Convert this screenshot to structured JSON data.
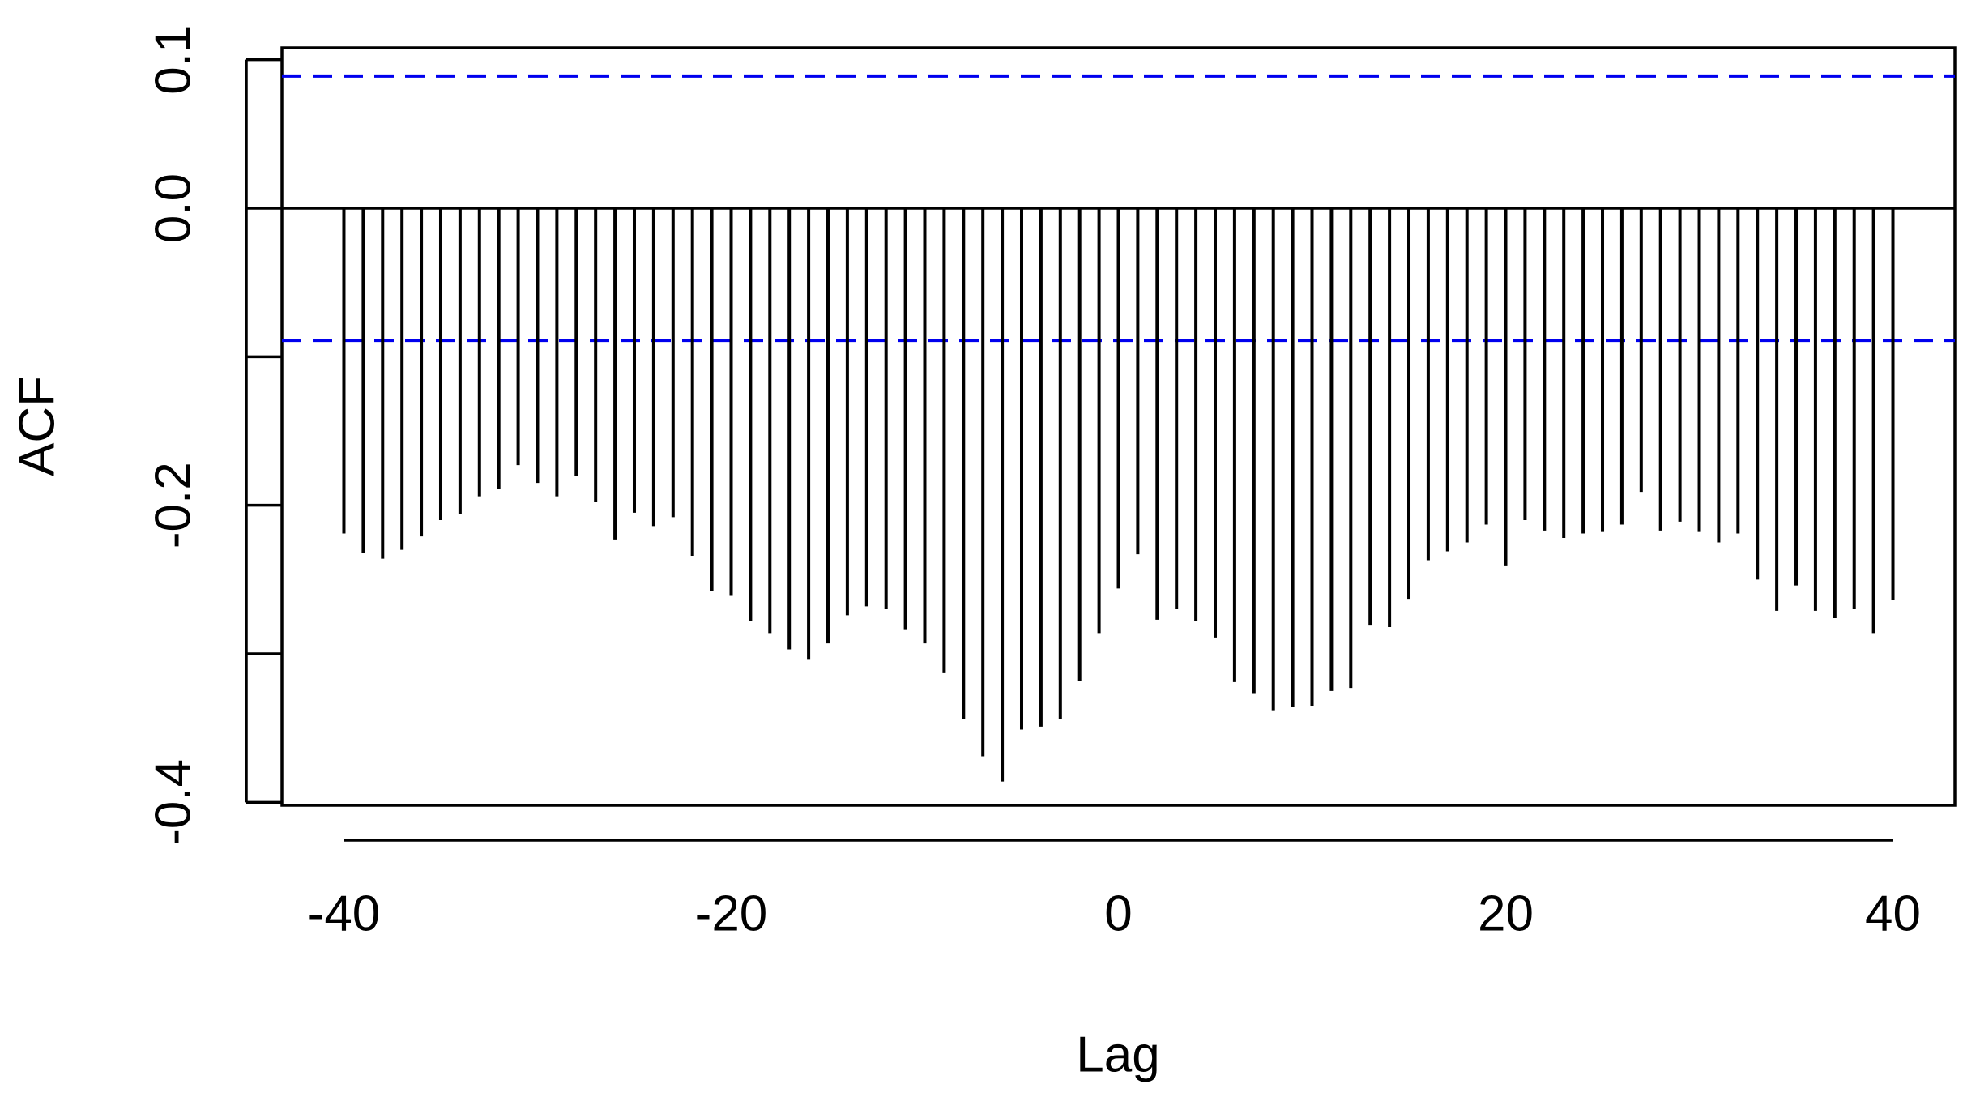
{
  "chart_data": {
    "type": "stem",
    "x_label": "Lag",
    "y_label": "ACF",
    "x": [
      -40,
      -39,
      -38,
      -37,
      -36,
      -35,
      -34,
      -33,
      -32,
      -31,
      -30,
      -29,
      -28,
      -27,
      -26,
      -25,
      -24,
      -23,
      -22,
      -21,
      -20,
      -19,
      -18,
      -17,
      -16,
      -15,
      -14,
      -13,
      -12,
      -11,
      -10,
      -9,
      -8,
      -7,
      -6,
      -5,
      -4,
      -3,
      -2,
      -1,
      0,
      1,
      2,
      3,
      4,
      5,
      6,
      7,
      8,
      9,
      10,
      11,
      12,
      13,
      14,
      15,
      16,
      17,
      18,
      19,
      20,
      21,
      22,
      23,
      24,
      25,
      26,
      27,
      28,
      29,
      30,
      31,
      32,
      33,
      34,
      35,
      36,
      37,
      38,
      39,
      40
    ],
    "values": [
      -0.219,
      -0.232,
      -0.236,
      -0.23,
      -0.221,
      -0.21,
      -0.206,
      -0.194,
      -0.189,
      -0.173,
      -0.185,
      -0.194,
      -0.18,
      -0.198,
      -0.223,
      -0.205,
      -0.214,
      -0.208,
      -0.234,
      -0.258,
      -0.261,
      -0.278,
      -0.286,
      -0.297,
      -0.304,
      -0.293,
      -0.274,
      -0.268,
      -0.27,
      -0.284,
      -0.293,
      -0.313,
      -0.344,
      -0.369,
      -0.386,
      -0.351,
      -0.349,
      -0.344,
      -0.318,
      -0.286,
      -0.256,
      -0.233,
      -0.277,
      -0.27,
      -0.278,
      -0.289,
      -0.319,
      -0.327,
      -0.338,
      -0.336,
      -0.335,
      -0.325,
      -0.323,
      -0.281,
      -0.282,
      -0.263,
      -0.237,
      -0.231,
      -0.225,
      -0.213,
      -0.241,
      -0.21,
      -0.217,
      -0.222,
      -0.219,
      -0.218,
      -0.213,
      -0.191,
      -0.217,
      -0.211,
      -0.218,
      -0.225,
      -0.219,
      -0.25,
      -0.271,
      -0.254,
      -0.271,
      -0.276,
      -0.27,
      -0.286,
      -0.264
    ],
    "color": "#000000",
    "ci_lines": [
      0.089,
      -0.089
    ],
    "ci_color": "#0000ee",
    "xlim": [
      -43.2,
      43.2
    ],
    "xticks": [
      -40,
      -20,
      0,
      20,
      40
    ],
    "ylim": [
      -0.402,
      0.108
    ],
    "yticks": [
      {
        "value": 0.1,
        "label": "0.1"
      },
      {
        "value": 0,
        "label": "0.0"
      },
      {
        "value": -0.1,
        "label": null
      },
      {
        "value": -0.2,
        "label": "-0.2"
      },
      {
        "value": -0.3,
        "label": null
      },
      {
        "value": -0.4,
        "label": "-0.4"
      }
    ]
  }
}
